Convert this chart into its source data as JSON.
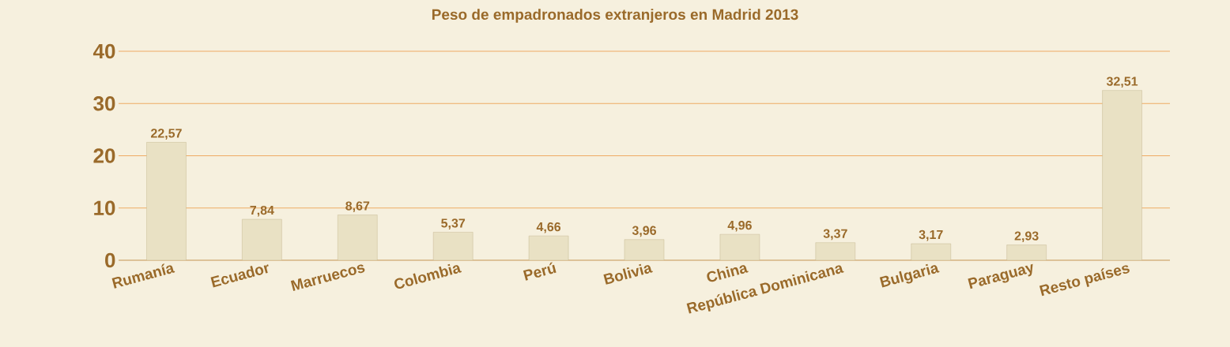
{
  "chart_data": {
    "type": "bar",
    "title": "Peso de empadronados extranjeros en Madrid 2013",
    "categories": [
      "Rumanía",
      "Ecuador",
      "Marruecos",
      "Colombia",
      "Perú",
      "Bolivia",
      "China",
      "República Dominicana",
      "Bulgaria",
      "Paraguay",
      "Resto países"
    ],
    "values": [
      22.57,
      7.84,
      8.67,
      5.37,
      4.66,
      3.96,
      4.96,
      3.37,
      3.17,
      2.93,
      32.51
    ],
    "value_labels": [
      "22,57",
      "7,84",
      "8,67",
      "5,37",
      "4,66",
      "3,96",
      "4,96",
      "3,37",
      "3,17",
      "2,93",
      "32,51"
    ],
    "color": "#e9e1c4",
    "ylim": [
      0,
      40
    ],
    "yticks": [
      0,
      10,
      20,
      30,
      40
    ],
    "grid": "y"
  }
}
